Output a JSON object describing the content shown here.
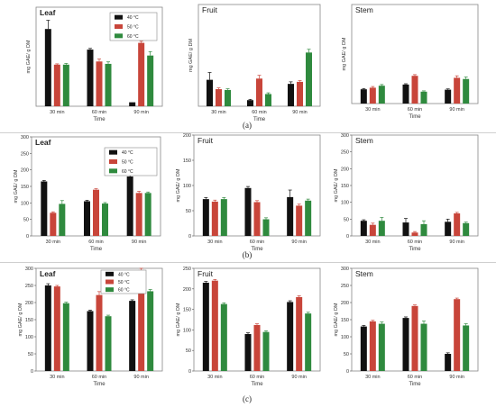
{
  "figure": {
    "row_labels": [
      "(a)",
      "(b)",
      "(c)"
    ]
  },
  "colors": {
    "s40": "#111111",
    "s50": "#c8453a",
    "s60": "#2f8a3e"
  },
  "chart_data": [
    {
      "type": "bar",
      "row": "(a)",
      "title": "Leaf",
      "categories": [
        "30 min",
        "60 min",
        "90 min"
      ],
      "xlabel": "Time",
      "ylabel": "mg GAE/ g DM",
      "ylim": [
        0,
        250
      ],
      "show_yticks": false,
      "legend": "top-right",
      "series": [
        {
          "name": "40 °C",
          "values": [
            195,
            143,
            10
          ]
        },
        {
          "name": "50 °C",
          "values": [
            105,
            113,
            160
          ]
        },
        {
          "name": "60 °C",
          "values": [
            105,
            107,
            128
          ]
        }
      ],
      "errors": [
        [
          22,
          3,
          0
        ],
        [
          2,
          6,
          4
        ],
        [
          3,
          5,
          10
        ]
      ]
    },
    {
      "type": "bar",
      "row": "(a)",
      "title": "Fruit",
      "categories": [
        "30 min",
        "60 min",
        "90 min"
      ],
      "xlabel": "Time",
      "ylabel": "mg GAE/ g DM",
      "ylim": [
        0,
        250
      ],
      "show_yticks": false,
      "series": [
        {
          "values": [
            65,
            15,
            55
          ]
        },
        {
          "values": [
            42,
            68,
            60
          ]
        },
        {
          "values": [
            40,
            30,
            132
          ]
        }
      ],
      "errors": [
        [
          18,
          2,
          5
        ],
        [
          3,
          8,
          3
        ],
        [
          3,
          3,
          8
        ]
      ]
    },
    {
      "type": "bar",
      "row": "(a)",
      "title": "Stem",
      "categories": [
        "30 min",
        "60 min",
        "90 min"
      ],
      "xlabel": "Time",
      "ylabel": "mg GAE/ g DM",
      "ylim": [
        0,
        250
      ],
      "show_yticks": false,
      "series": [
        {
          "values": [
            36,
            48,
            35
          ]
        },
        {
          "values": [
            40,
            70,
            65
          ]
        },
        {
          "values": [
            45,
            30,
            62
          ]
        }
      ],
      "errors": [
        [
          2,
          2,
          2
        ],
        [
          3,
          3,
          5
        ],
        [
          3,
          2,
          5
        ]
      ]
    },
    {
      "type": "bar",
      "row": "(b)",
      "title": "Leaf",
      "categories": [
        "30 min",
        "60 min",
        "90 min"
      ],
      "xlabel": "Time",
      "ylabel": "mg GAE/ g DM",
      "ylim": [
        0,
        300
      ],
      "yticks": [
        0,
        50,
        100,
        150,
        200,
        250,
        300
      ],
      "show_yticks": true,
      "legend": "top-right",
      "series": [
        {
          "name": "40 °C",
          "values": [
            165,
            105,
            180
          ]
        },
        {
          "name": "50 °C",
          "values": [
            70,
            140,
            130
          ]
        },
        {
          "name": "60 °C",
          "values": [
            97,
            98,
            130
          ]
        }
      ],
      "errors": [
        [
          3,
          3,
          8
        ],
        [
          3,
          3,
          5
        ],
        [
          10,
          3,
          3
        ]
      ]
    },
    {
      "type": "bar",
      "row": "(b)",
      "title": "Fruit",
      "categories": [
        "30 min",
        "60 min",
        "90 min"
      ],
      "xlabel": "Time",
      "ylabel": "mg GAE/ g DM",
      "ylim": [
        0,
        200
      ],
      "yticks": [
        0,
        50,
        100,
        150,
        200
      ],
      "show_yticks": true,
      "series": [
        {
          "values": [
            73,
            95,
            77
          ]
        },
        {
          "values": [
            68,
            67,
            60
          ]
        },
        {
          "values": [
            73,
            33,
            70
          ]
        }
      ],
      "errors": [
        [
          3,
          3,
          14
        ],
        [
          3,
          3,
          3
        ],
        [
          3,
          3,
          3
        ]
      ]
    },
    {
      "type": "bar",
      "row": "(b)",
      "title": "Stem",
      "categories": [
        "30 min",
        "60 min",
        "90 min"
      ],
      "xlabel": "Time",
      "ylabel": "mg GAE/ g DM",
      "ylim": [
        0,
        300
      ],
      "yticks": [
        0,
        50,
        100,
        150,
        200,
        250,
        300
      ],
      "show_yticks": true,
      "series": [
        {
          "values": [
            45,
            40,
            42
          ]
        },
        {
          "values": [
            33,
            10,
            67
          ]
        },
        {
          "values": [
            45,
            35,
            38
          ]
        }
      ],
      "errors": [
        [
          3,
          12,
          8
        ],
        [
          5,
          3,
          3
        ],
        [
          10,
          10,
          3
        ]
      ]
    },
    {
      "type": "bar",
      "row": "(c)",
      "title": "Leaf",
      "categories": [
        "30 min",
        "60 min",
        "90 min"
      ],
      "xlabel": "Time",
      "ylabel": "mg GAE/ g DM",
      "ylim": [
        0,
        300
      ],
      "yticks": [
        0,
        50,
        100,
        150,
        200,
        250,
        300
      ],
      "show_yticks": true,
      "legend": "top-center",
      "series": [
        {
          "name": "40 °C",
          "values": [
            250,
            175,
            205
          ]
        },
        {
          "name": "50 °C",
          "values": [
            247,
            222,
            295
          ]
        },
        {
          "name": "60 °C",
          "values": [
            198,
            160,
            233
          ]
        }
      ],
      "errors": [
        [
          5,
          3,
          3
        ],
        [
          3,
          10,
          5
        ],
        [
          3,
          3,
          5
        ]
      ]
    },
    {
      "type": "bar",
      "row": "(c)",
      "title": "Fruit",
      "categories": [
        "30 min",
        "60 min",
        "90 min"
      ],
      "xlabel": "Time",
      "ylabel": "mg GAE/ g DM",
      "ylim": [
        0,
        250
      ],
      "yticks": [
        0,
        50,
        100,
        150,
        200,
        250
      ],
      "show_yticks": true,
      "series": [
        {
          "values": [
            215,
            90,
            168
          ]
        },
        {
          "values": [
            220,
            112,
            180
          ]
        },
        {
          "values": [
            163,
            95,
            140
          ]
        }
      ],
      "errors": [
        [
          3,
          3,
          3
        ],
        [
          3,
          3,
          3
        ],
        [
          3,
          3,
          3
        ]
      ]
    },
    {
      "type": "bar",
      "row": "(c)",
      "title": "Stem",
      "categories": [
        "30 min",
        "60 min",
        "90 min"
      ],
      "xlabel": "Time",
      "ylabel": "mg GAE/ g DM",
      "ylim": [
        0,
        300
      ],
      "yticks": [
        0,
        50,
        100,
        150,
        200,
        250,
        300
      ],
      "show_yticks": true,
      "series": [
        {
          "values": [
            130,
            155,
            50
          ]
        },
        {
          "values": [
            145,
            190,
            210
          ]
        },
        {
          "values": [
            138,
            138,
            133
          ]
        }
      ],
      "errors": [
        [
          3,
          3,
          3
        ],
        [
          3,
          3,
          3
        ],
        [
          5,
          8,
          5
        ]
      ]
    }
  ]
}
